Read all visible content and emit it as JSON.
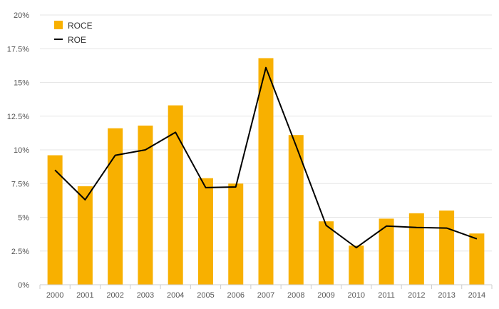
{
  "chart_data": {
    "type": "bar",
    "categories": [
      "2000",
      "2001",
      "2002",
      "2003",
      "2004",
      "2005",
      "2006",
      "2007",
      "2008",
      "2009",
      "2010",
      "2011",
      "2012",
      "2013",
      "2014"
    ],
    "series": [
      {
        "name": "ROCE",
        "kind": "bar",
        "color": "#F8B000",
        "values": [
          9.6,
          7.3,
          11.6,
          11.8,
          13.3,
          7.9,
          7.5,
          16.8,
          11.1,
          4.7,
          2.9,
          4.9,
          5.3,
          5.5,
          3.8
        ]
      },
      {
        "name": "ROE",
        "kind": "line",
        "color": "#000000",
        "values": [
          8.5,
          6.3,
          9.6,
          10.0,
          11.3,
          7.2,
          7.25,
          16.1,
          10.3,
          4.4,
          2.75,
          4.35,
          4.25,
          4.2,
          3.4
        ]
      }
    ],
    "y_ticks": [
      "0%",
      "2.5%",
      "5%",
      "7.5%",
      "10%",
      "12.5%",
      "15%",
      "17.5%",
      "20%"
    ],
    "ylim": [
      0,
      20
    ],
    "y_tick_step": 2.5,
    "grid": true,
    "legend_position": "top-left",
    "title": "",
    "xlabel": "",
    "ylabel": ""
  }
}
